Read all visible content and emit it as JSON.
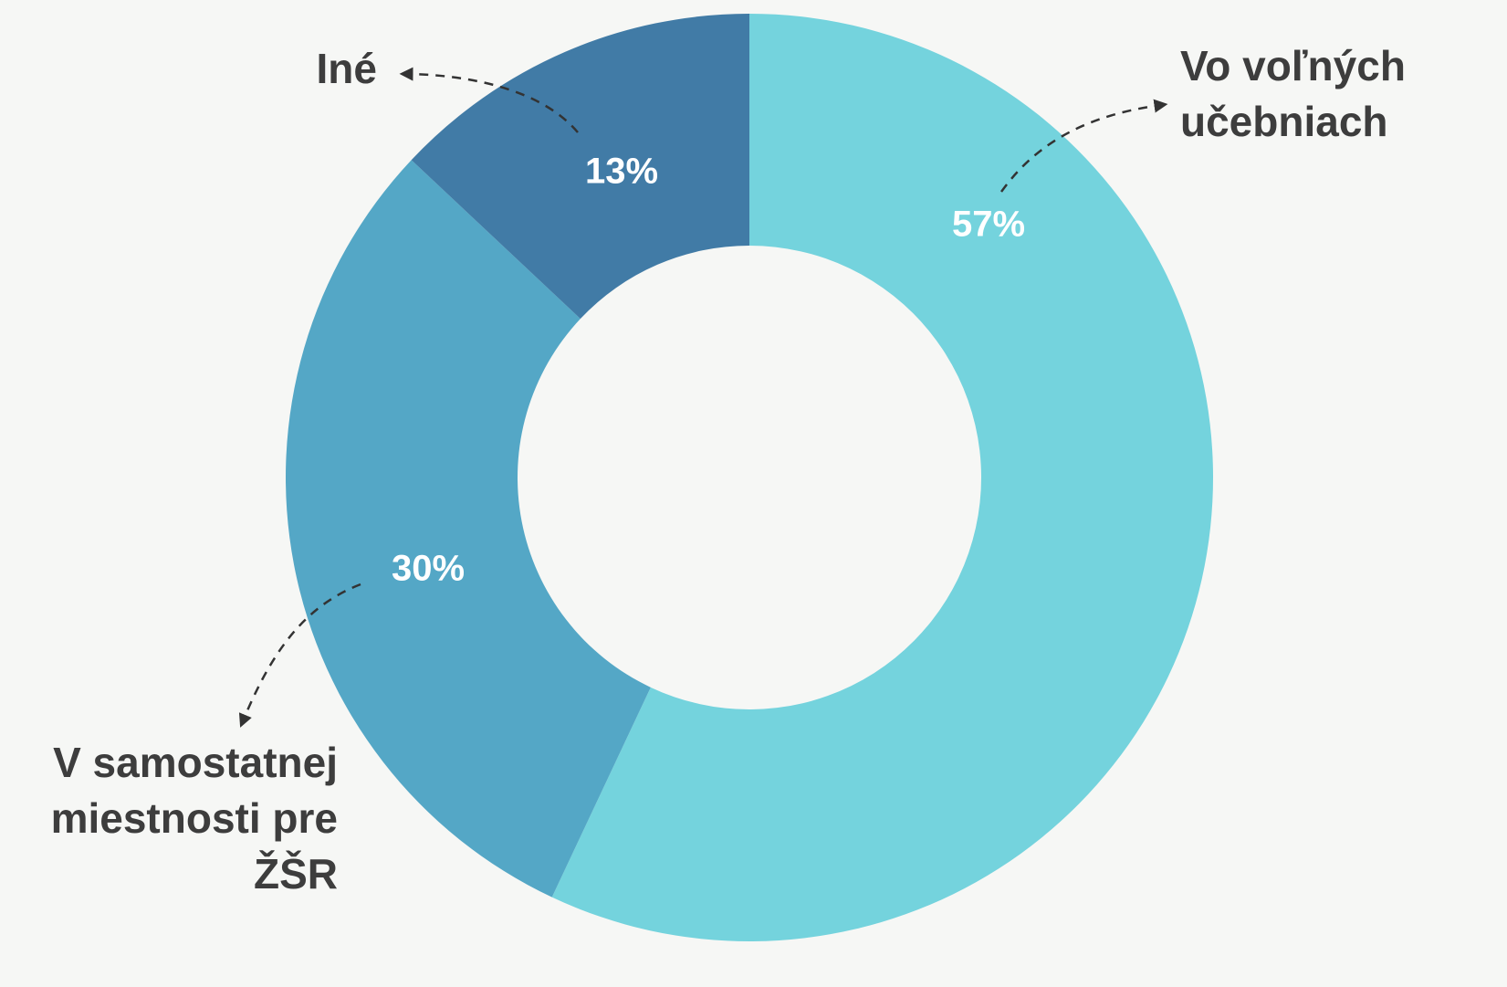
{
  "chart_data": {
    "type": "donut",
    "categories": [
      "Vo voľných učebniach",
      "V samostatnej miestnosti pre ŽŠR",
      "Iné"
    ],
    "values": [
      57,
      30,
      13
    ],
    "value_labels": [
      "57%",
      "30%",
      "13%"
    ],
    "colors": [
      "#74d3dd",
      "#54a7c6",
      "#417ba6"
    ]
  }
}
